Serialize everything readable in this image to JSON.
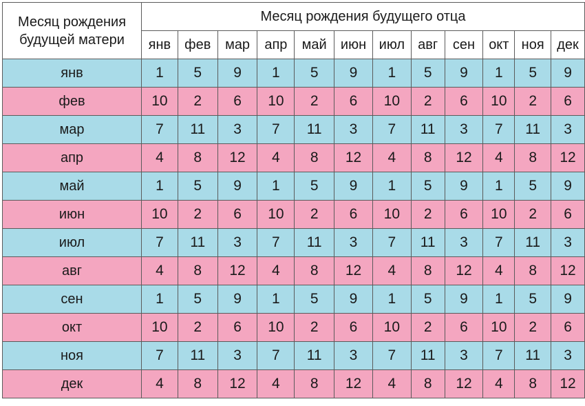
{
  "table": {
    "corner_label_line1": "Месяц рождения",
    "corner_label_line2": "будущей матери",
    "father_header": "Месяц рождения будущего отца",
    "columns": [
      "янв",
      "фев",
      "мар",
      "апр",
      "май",
      "июн",
      "июл",
      "авг",
      "сен",
      "окт",
      "ноя",
      "дек"
    ],
    "rows": [
      {
        "label": "янв",
        "color": "#a9dbe8",
        "values": [
          "1",
          "5",
          "9",
          "1",
          "5",
          "9",
          "1",
          "5",
          "9",
          "1",
          "5",
          "9"
        ]
      },
      {
        "label": "фев",
        "color": "#f4a6c0",
        "values": [
          "10",
          "2",
          "6",
          "10",
          "2",
          "6",
          "10",
          "2",
          "6",
          "10",
          "2",
          "6"
        ]
      },
      {
        "label": "мар",
        "color": "#a9dbe8",
        "values": [
          "7",
          "11",
          "3",
          "7",
          "11",
          "3",
          "7",
          "11",
          "3",
          "7",
          "11",
          "3"
        ]
      },
      {
        "label": "апр",
        "color": "#f4a6c0",
        "values": [
          "4",
          "8",
          "12",
          "4",
          "8",
          "12",
          "4",
          "8",
          "12",
          "4",
          "8",
          "12"
        ]
      },
      {
        "label": "май",
        "color": "#a9dbe8",
        "values": [
          "1",
          "5",
          "9",
          "1",
          "5",
          "9",
          "1",
          "5",
          "9",
          "1",
          "5",
          "9"
        ]
      },
      {
        "label": "июн",
        "color": "#f4a6c0",
        "values": [
          "10",
          "2",
          "6",
          "10",
          "2",
          "6",
          "10",
          "2",
          "6",
          "10",
          "2",
          "6"
        ]
      },
      {
        "label": "июл",
        "color": "#a9dbe8",
        "values": [
          "7",
          "11",
          "3",
          "7",
          "11",
          "3",
          "7",
          "11",
          "3",
          "7",
          "11",
          "3"
        ]
      },
      {
        "label": "авг",
        "color": "#f4a6c0",
        "values": [
          "4",
          "8",
          "12",
          "4",
          "8",
          "12",
          "4",
          "8",
          "12",
          "4",
          "8",
          "12"
        ]
      },
      {
        "label": "сен",
        "color": "#a9dbe8",
        "values": [
          "1",
          "5",
          "9",
          "1",
          "5",
          "9",
          "1",
          "5",
          "9",
          "1",
          "5",
          "9"
        ]
      },
      {
        "label": "окт",
        "color": "#f4a6c0",
        "values": [
          "10",
          "2",
          "6",
          "10",
          "2",
          "6",
          "10",
          "2",
          "6",
          "10",
          "2",
          "6"
        ]
      },
      {
        "label": "ноя",
        "color": "#a9dbe8",
        "values": [
          "7",
          "11",
          "3",
          "7",
          "11",
          "3",
          "7",
          "11",
          "3",
          "7",
          "11",
          "3"
        ]
      },
      {
        "label": "дек",
        "color": "#f4a6c0",
        "values": [
          "4",
          "8",
          "12",
          "4",
          "8",
          "12",
          "4",
          "8",
          "12",
          "4",
          "8",
          "12"
        ]
      }
    ]
  }
}
